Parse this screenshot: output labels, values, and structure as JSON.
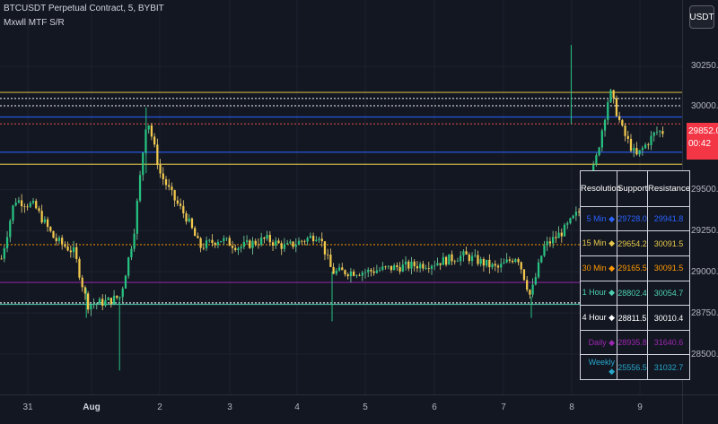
{
  "header": {
    "symbol_line": "BTCUSDT Perpetual Contract, 5, BYBIT",
    "indicator_name": "Mxwll MTF S/R"
  },
  "currency_button": "USDT",
  "price_axis": {
    "ticks": [
      "30250.0",
      "30000.0",
      "29500.0",
      "29250.0",
      "29000.0",
      "28750.0",
      "28500.0"
    ],
    "current_price": "29852.0",
    "countdown": "00:42"
  },
  "time_axis": {
    "ticks": [
      "31",
      "Aug",
      "2",
      "3",
      "4",
      "5",
      "6",
      "7",
      "8",
      "9"
    ]
  },
  "colors": {
    "background": "#131722",
    "candle_up": "#26a69a",
    "candle_down": "#ef5350",
    "price_tag": "#f23645"
  },
  "chart_data": {
    "type": "candlestick",
    "y_range": [
      28250,
      30500
    ],
    "y_ticks": [
      30250,
      30000,
      29500,
      29250,
      29000,
      28750,
      28500
    ],
    "x_labels": [
      "31",
      "Aug",
      "2",
      "3",
      "4",
      "5",
      "6",
      "7",
      "8",
      "9"
    ],
    "approx_close_path": [
      [
        0,
        29080
      ],
      [
        0.02,
        29440
      ],
      [
        0.05,
        29400
      ],
      [
        0.08,
        29200
      ],
      [
        0.11,
        29120
      ],
      [
        0.13,
        28800
      ],
      [
        0.16,
        28820
      ],
      [
        0.18,
        28850
      ],
      [
        0.2,
        29230
      ],
      [
        0.22,
        29950
      ],
      [
        0.24,
        29600
      ],
      [
        0.26,
        29450
      ],
      [
        0.28,
        29330
      ],
      [
        0.3,
        29150
      ],
      [
        0.33,
        29200
      ],
      [
        0.36,
        29150
      ],
      [
        0.4,
        29200
      ],
      [
        0.43,
        29150
      ],
      [
        0.48,
        29230
      ],
      [
        0.5,
        29000
      ],
      [
        0.55,
        29000
      ],
      [
        0.6,
        29030
      ],
      [
        0.65,
        29050
      ],
      [
        0.7,
        29100
      ],
      [
        0.75,
        29020
      ],
      [
        0.78,
        29100
      ],
      [
        0.8,
        28850
      ],
      [
        0.82,
        29150
      ],
      [
        0.85,
        29250
      ],
      [
        0.88,
        29400
      ],
      [
        0.9,
        29700
      ],
      [
        0.92,
        30100
      ],
      [
        0.94,
        29850
      ],
      [
        0.96,
        29700
      ],
      [
        0.99,
        29852
      ]
    ],
    "levels": [
      {
        "price": 30091.5,
        "color": "#e6c84a"
      },
      {
        "price": 30054.7,
        "color": "#ffffff",
        "style": "dotted"
      },
      {
        "price": 30010.4,
        "color": "#ffffff",
        "style": "dotted"
      },
      {
        "price": 29941.8,
        "color": "#2962ff"
      },
      {
        "price": 29900.0,
        "color": "#ef5350",
        "style": "dotted"
      },
      {
        "price": 29728.0,
        "color": "#2962ff"
      },
      {
        "price": 29654.2,
        "color": "#e6c84a"
      },
      {
        "price": 29165.5,
        "color": "#ff9800",
        "style": "dotted"
      },
      {
        "price": 28935.8,
        "color": "#9c27b0"
      },
      {
        "price": 28811.5,
        "color": "#ffffff",
        "style": "dotted"
      },
      {
        "price": 28802.4,
        "color": "#4dd0b0"
      }
    ]
  },
  "sr_table": {
    "headers": [
      "Resolution",
      "Support",
      "Resistance"
    ],
    "rows": [
      {
        "label": "5 Min",
        "support": "29728.0",
        "resistance": "29941.8",
        "color": "#2962ff"
      },
      {
        "label": "15 Min",
        "support": "29654.2",
        "resistance": "30091.5",
        "color": "#e6c84a"
      },
      {
        "label": "30 Min",
        "support": "29165.5",
        "resistance": "30091.5",
        "color": "#ff9800"
      },
      {
        "label": "1 Hour",
        "support": "28802.4",
        "resistance": "30054.7",
        "color": "#4dd0b0"
      },
      {
        "label": "4 Hour",
        "support": "28811.5",
        "resistance": "30010.4",
        "color": "#ffffff"
      },
      {
        "label": "Daily",
        "support": "28935.8",
        "resistance": "31640.6",
        "color": "#9c27b0"
      },
      {
        "label": "Weekly",
        "support": "25556.5",
        "resistance": "31032.7",
        "color": "#26a6c9"
      }
    ]
  }
}
